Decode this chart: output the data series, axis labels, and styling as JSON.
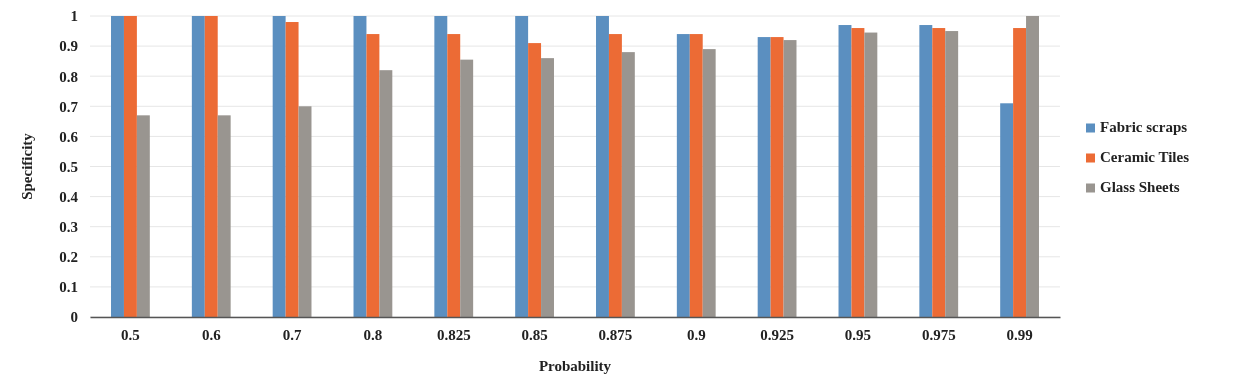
{
  "chart_data": {
    "type": "bar",
    "xlabel": "Probability",
    "ylabel": "Specificity",
    "categories": [
      "0.5",
      "0.6",
      "0.7",
      "0.8",
      "0.825",
      "0.85",
      "0.875",
      "0.9",
      "0.925",
      "0.95",
      "0.975",
      "0.99"
    ],
    "series": [
      {
        "name": "Fabric scraps",
        "color": "#5b8fc0",
        "values": [
          1,
          1,
          1,
          1,
          1,
          1,
          1,
          0.94,
          0.93,
          0.97,
          0.97,
          0.71
        ]
      },
      {
        "name": "Ceramic Tiles",
        "color": "#ec6b35",
        "values": [
          1,
          1,
          0.98,
          0.94,
          0.94,
          0.91,
          0.94,
          0.94,
          0.93,
          0.96,
          0.96,
          0.96
        ]
      },
      {
        "name": "Glass Sheets",
        "color": "#999590",
        "values": [
          0.67,
          0.67,
          0.7,
          0.82,
          0.855,
          0.86,
          0.88,
          0.89,
          0.92,
          0.945,
          0.95,
          1
        ]
      }
    ],
    "ylim": [
      0,
      1
    ],
    "yticks": [
      0,
      0.1,
      0.2,
      0.3,
      0.4,
      0.5,
      0.6,
      0.7,
      0.8,
      0.9,
      1
    ],
    "grid": "y",
    "legend": "right"
  }
}
